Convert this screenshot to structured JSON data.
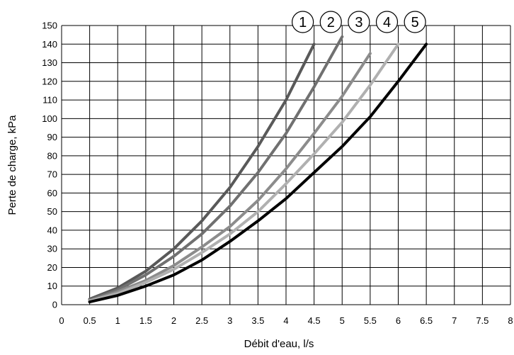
{
  "chart_data": {
    "type": "line",
    "title": "",
    "xlabel": "Débit d'eau, l/s",
    "ylabel": "Perte de charge, kPa",
    "xlim": [
      0,
      8
    ],
    "ylim": [
      0,
      150
    ],
    "x_ticks": [
      "0",
      "0.5",
      "1",
      "1.5",
      "2",
      "2.5",
      "3",
      "3.5",
      "4",
      "4.5",
      "5",
      "5.5",
      "6",
      "6.5",
      "7",
      "7.5",
      "8"
    ],
    "y_ticks": [
      "0",
      "10",
      "20",
      "30",
      "40",
      "50",
      "60",
      "70",
      "80",
      "90",
      "100",
      "110",
      "120",
      "130",
      "140",
      "150"
    ],
    "grid": true,
    "legend": "curve labels above line ends",
    "series": [
      {
        "name": "1",
        "color": "#595959",
        "x": [
          0.5,
          1,
          1.5,
          2,
          2.5,
          3,
          3.5,
          4,
          4.5
        ],
        "y": [
          3,
          9,
          18,
          30,
          45,
          63,
          85,
          110,
          140
        ]
      },
      {
        "name": "2",
        "color": "#707070",
        "x": [
          0.5,
          1,
          1.5,
          2,
          2.5,
          3,
          3.5,
          4,
          4.5,
          5
        ],
        "y": [
          2.5,
          8,
          16,
          26,
          38,
          53,
          71,
          92,
          117,
          144
        ]
      },
      {
        "name": "3",
        "color": "#8c8c8c",
        "x": [
          0.5,
          1,
          1.5,
          2,
          2.5,
          3,
          3.5,
          4,
          4.5,
          5,
          5.5
        ],
        "y": [
          2,
          7,
          13,
          21,
          31,
          42,
          56,
          73,
          92,
          112,
          135
        ]
      },
      {
        "name": "4",
        "color": "#b0b0b0",
        "x": [
          0.5,
          1,
          1.5,
          2,
          2.5,
          3,
          3.5,
          4,
          4.5,
          5,
          5.5,
          6
        ],
        "y": [
          2,
          6,
          12,
          19,
          28,
          38,
          50,
          65,
          81,
          98,
          118,
          140
        ]
      },
      {
        "name": "5",
        "color": "#000000",
        "x": [
          0.5,
          1,
          1.5,
          2,
          2.5,
          3,
          3.5,
          4,
          4.5,
          5,
          5.5,
          6,
          6.5
        ],
        "y": [
          1.5,
          5,
          10,
          16,
          24,
          34,
          45,
          57,
          71,
          85,
          101,
          120,
          140
        ]
      }
    ]
  }
}
